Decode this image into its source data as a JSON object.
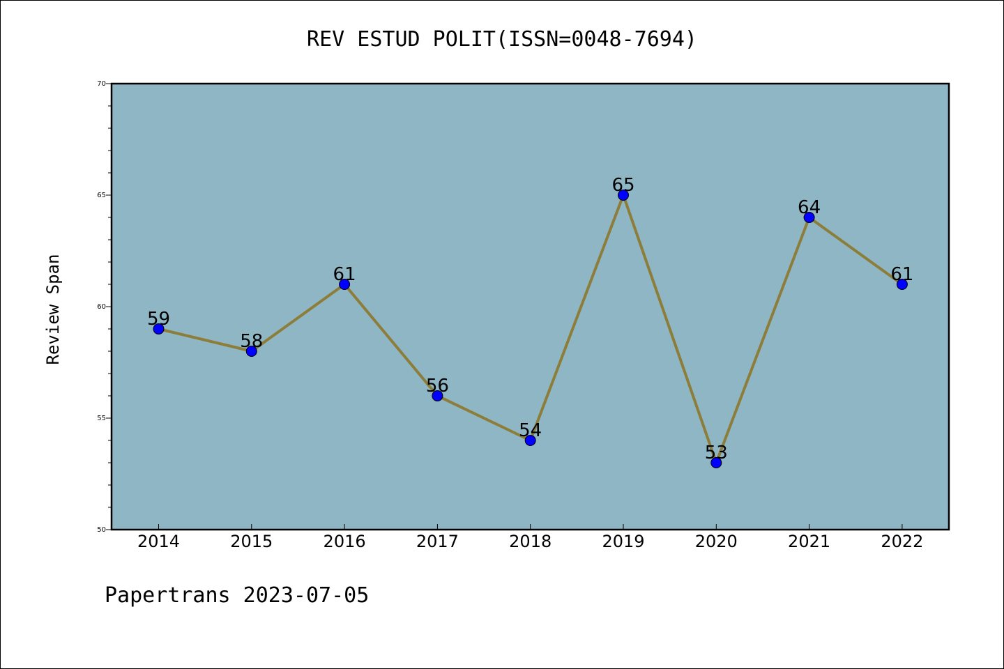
{
  "chart_data": {
    "type": "line",
    "title": "REV ESTUD POLIT(ISSN=0048-7694)",
    "xlabel": "",
    "ylabel": "Review Span",
    "categories": [
      "2014",
      "2015",
      "2016",
      "2017",
      "2018",
      "2019",
      "2020",
      "2021",
      "2022"
    ],
    "values": [
      59,
      58,
      61,
      56,
      54,
      65,
      53,
      64,
      61
    ],
    "ylim": [
      50,
      70
    ],
    "yticks": [
      50,
      55,
      60,
      65,
      70
    ],
    "grid": false,
    "colors": {
      "plot_background": "#8fb6c5",
      "line": "#8c7e3a",
      "marker": "#0000ff"
    }
  },
  "footer": "Papertrans 2023-07-05"
}
